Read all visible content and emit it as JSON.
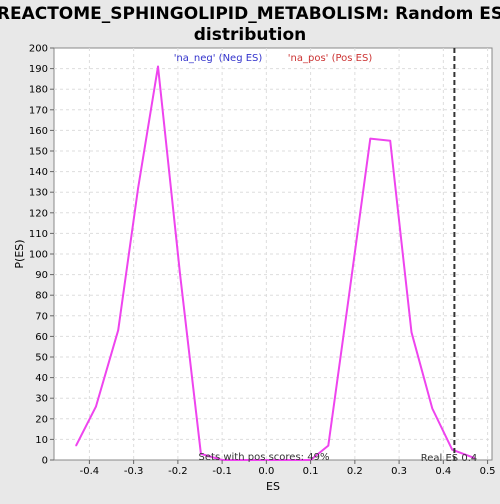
{
  "chart_data": {
    "type": "line",
    "title_line1": "REACTOME_SPHINGOLIPID_METABOLISM: Random ES",
    "title_line2": "distribution",
    "xlabel": "ES",
    "ylabel": "P(ES)",
    "xlim": [
      -0.48,
      0.51
    ],
    "ylim": [
      0,
      200
    ],
    "x_ticks": [
      -0.4,
      -0.3,
      -0.2,
      -0.1,
      0.0,
      0.1,
      0.2,
      0.3,
      0.4,
      0.5
    ],
    "x_tick_labels": [
      "-0.4",
      "-0.3",
      "-0.2",
      "-0.1",
      "0.0",
      "0.1",
      "0.2",
      "0.3",
      "0.4",
      "0.5"
    ],
    "y_ticks": [
      0,
      10,
      20,
      30,
      40,
      50,
      60,
      70,
      80,
      90,
      100,
      110,
      120,
      130,
      140,
      150,
      160,
      170,
      180,
      190,
      200
    ],
    "grid": true,
    "legend": [
      {
        "label": "'na_neg' (Neg ES)",
        "color": "#3333cc"
      },
      {
        "label": "'na_pos' (Pos ES)",
        "color": "#cc3333"
      }
    ],
    "series": [
      {
        "color": "#ee44ee",
        "x": [
          -0.43,
          -0.385,
          -0.335,
          -0.29,
          -0.245,
          -0.195,
          -0.148,
          -0.1,
          -0.05,
          0.0,
          0.05,
          0.1,
          0.14,
          0.185,
          0.235,
          0.28,
          0.328,
          0.375,
          0.42,
          0.445,
          0.47
        ],
        "y": [
          7,
          26,
          63,
          132,
          191,
          90,
          3,
          0,
          0,
          0,
          0,
          0,
          7,
          77,
          156,
          155,
          62,
          25,
          5,
          3,
          1
        ]
      }
    ],
    "real_es": {
      "x": 0.425,
      "label": "Real ES 0.4",
      "color": "#333333"
    },
    "annotation": "Sets with pos scores: 49%"
  }
}
